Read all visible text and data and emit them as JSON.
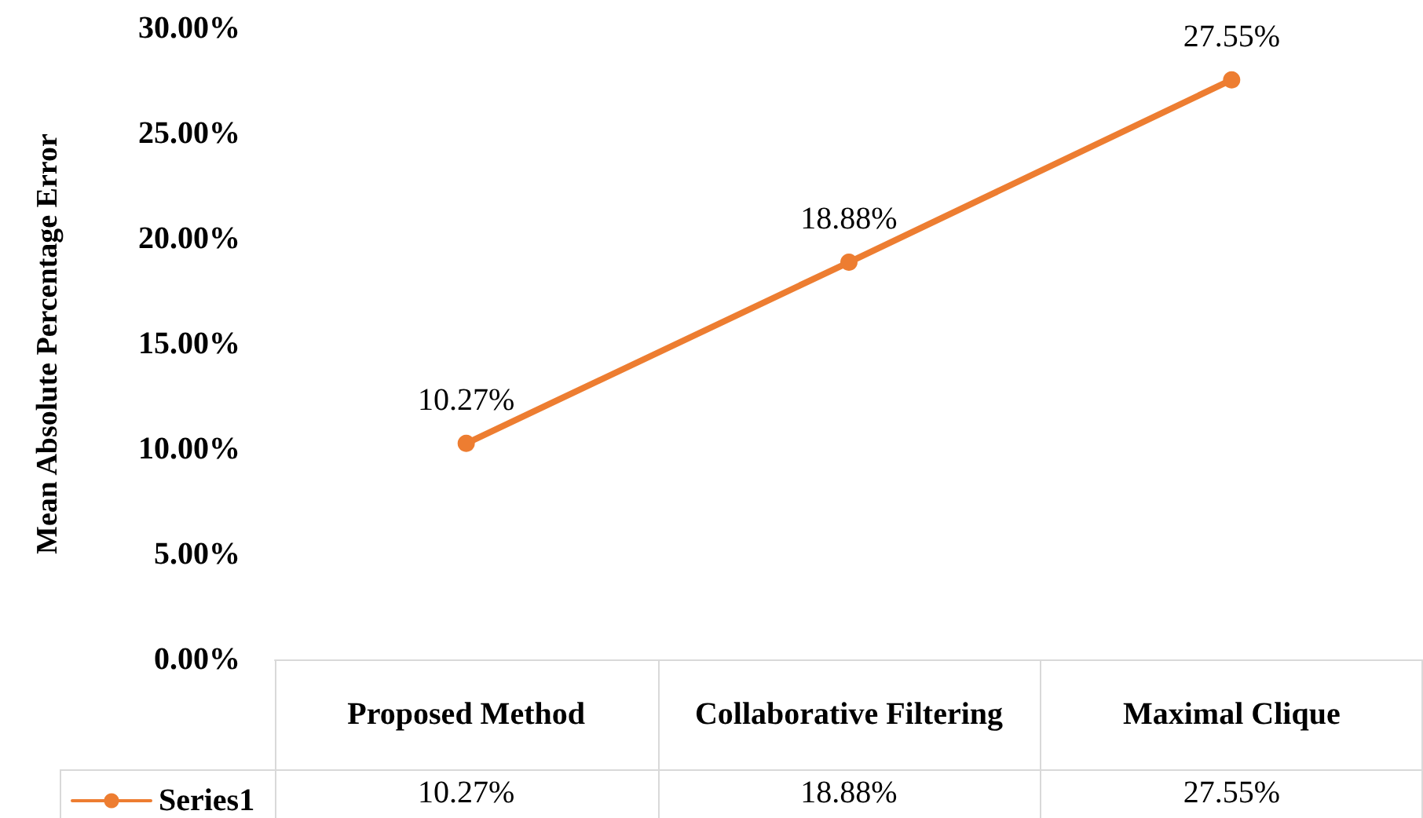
{
  "chart_data": {
    "type": "line",
    "ylabel": "Mean Absolute Percentage Error",
    "categories": [
      "Proposed Method",
      "Collaborative Filtering",
      "Maximal Clique"
    ],
    "series": [
      {
        "name": "Series1",
        "color": "#ed7d31",
        "values": [
          10.27,
          18.88,
          27.55
        ],
        "value_labels": [
          "10.27%",
          "18.88%",
          "27.55%"
        ]
      }
    ],
    "ylim": [
      0,
      30
    ],
    "yticks": [
      {
        "value": 0,
        "label": "0.00%"
      },
      {
        "value": 5,
        "label": "5.00%"
      },
      {
        "value": 10,
        "label": "10.00%"
      },
      {
        "value": 15,
        "label": "15.00%"
      },
      {
        "value": 20,
        "label": "20.00%"
      },
      {
        "value": 25,
        "label": "25.00%"
      },
      {
        "value": 30,
        "label": "30.00%"
      }
    ],
    "grid": false,
    "legend": "bottom left",
    "marker": "circle",
    "line_style": "solid"
  }
}
